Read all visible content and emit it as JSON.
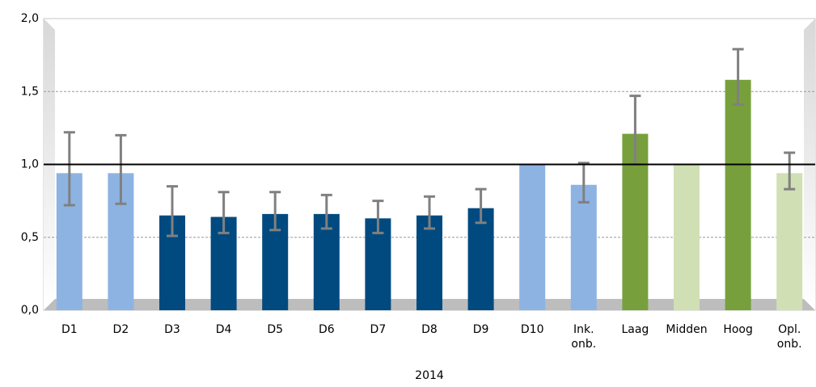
{
  "chart_data": {
    "type": "bar",
    "x_label": "2014",
    "categories": [
      "D1",
      "D2",
      "D3",
      "D4",
      "D5",
      "D6",
      "D7",
      "D8",
      "D9",
      "D10",
      "Ink. onb.",
      "Laag",
      "Midden",
      "Hoog",
      "Opl. onb."
    ],
    "values": [
      0.94,
      0.94,
      0.65,
      0.64,
      0.66,
      0.66,
      0.63,
      0.65,
      0.7,
      1.0,
      0.86,
      1.21,
      1.0,
      1.58,
      0.94
    ],
    "lower": [
      0.72,
      0.73,
      0.51,
      0.53,
      0.55,
      0.56,
      0.53,
      0.56,
      0.6,
      null,
      0.74,
      1.0,
      null,
      1.41,
      0.83
    ],
    "upper": [
      1.22,
      1.2,
      0.85,
      0.81,
      0.81,
      0.79,
      0.75,
      0.78,
      0.83,
      null,
      1.01,
      1.47,
      null,
      1.79,
      1.08
    ],
    "colors": [
      "#8db3e2",
      "#8db3e2",
      "#004a7f",
      "#004a7f",
      "#004a7f",
      "#004a7f",
      "#004a7f",
      "#004a7f",
      "#004a7f",
      "#8db3e2",
      "#8db3e2",
      "#77a03c",
      "#d0e0b4",
      "#77a03c",
      "#d0e0b4"
    ],
    "error_color": "#808080",
    "reference_line": 1.0,
    "ylim": [
      0,
      2
    ],
    "yticks": [
      {
        "value": 0,
        "label": "0,0"
      },
      {
        "value": 0.5,
        "label": "0,5"
      },
      {
        "value": 1,
        "label": "1,0"
      },
      {
        "value": 1.5,
        "label": "1,5"
      },
      {
        "value": 2,
        "label": "2,0"
      }
    ],
    "grid": true
  }
}
